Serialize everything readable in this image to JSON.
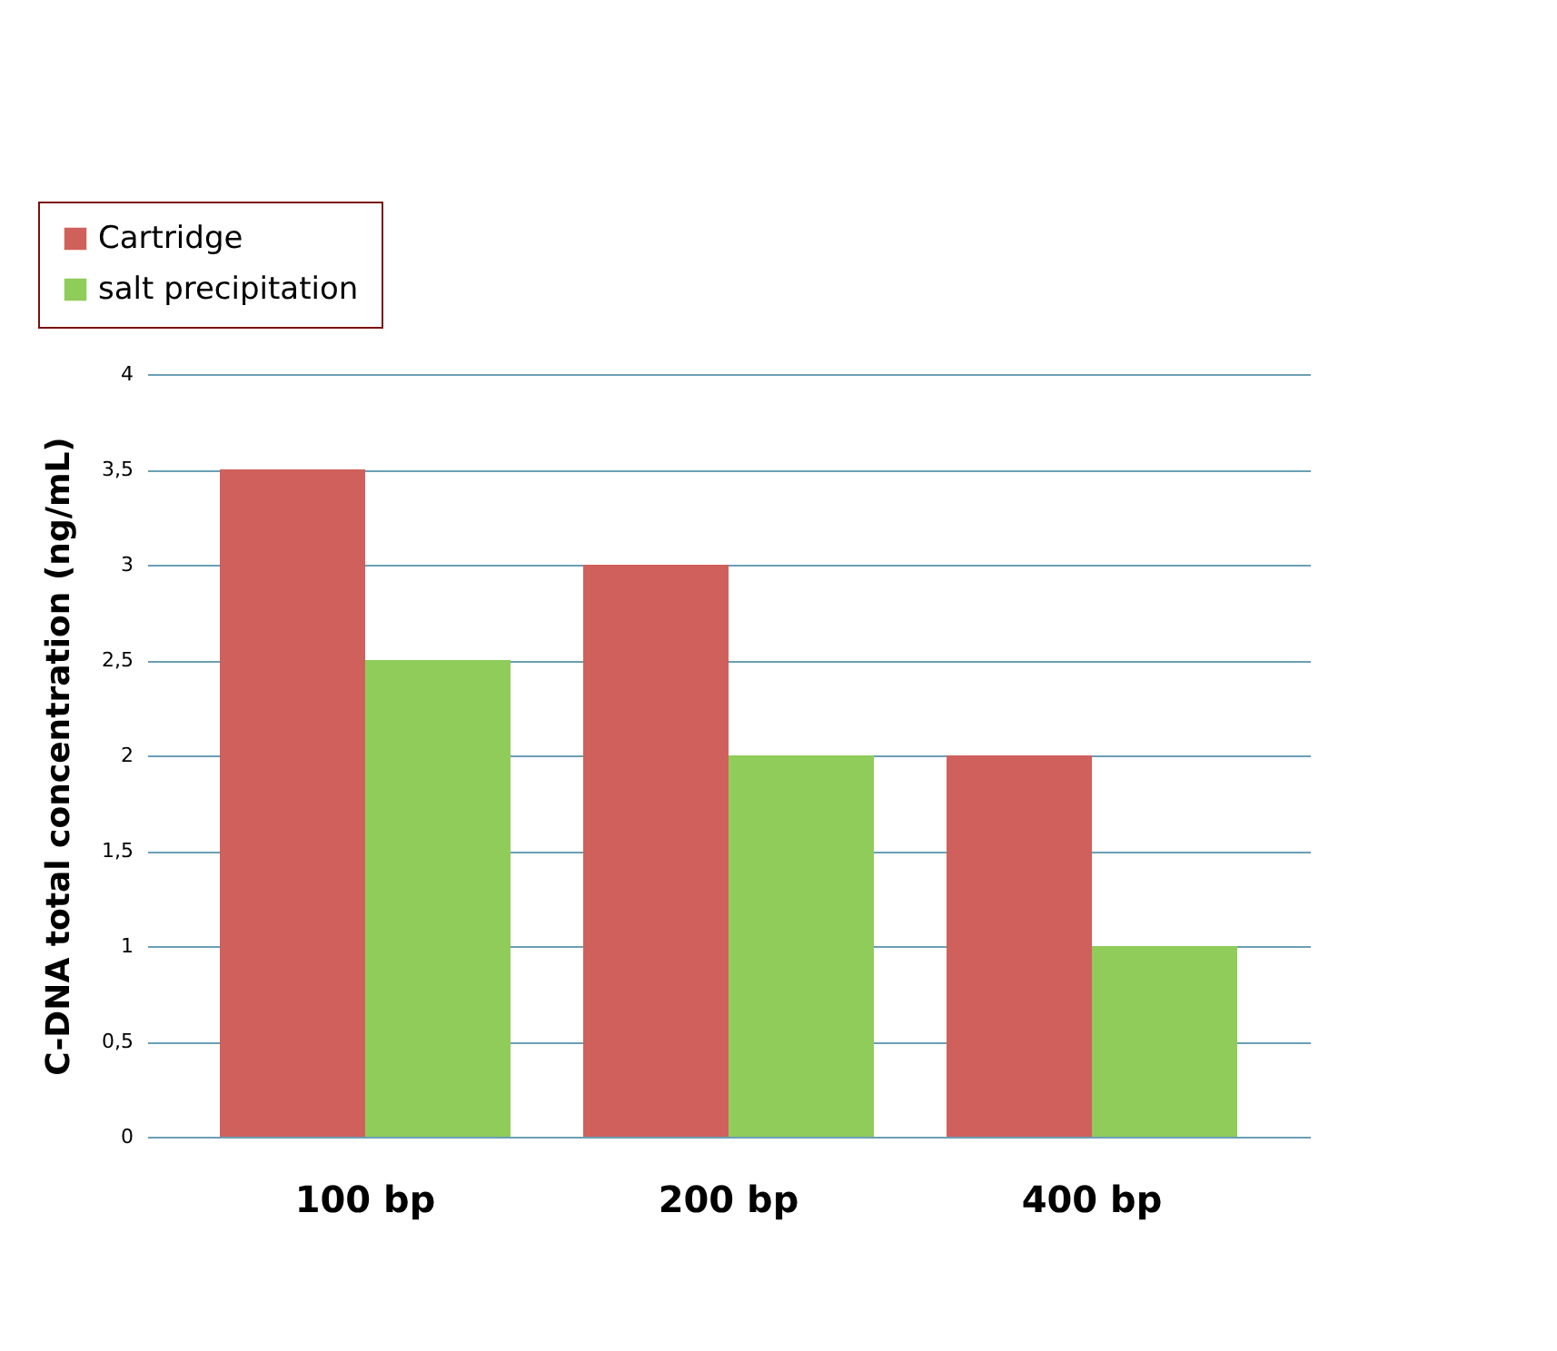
{
  "chart_data": {
    "type": "bar",
    "ylabel": "C-DNA total concentration  (ng/mL)",
    "categories": [
      "100 bp",
      "200 bp",
      "400 bp"
    ],
    "series": [
      {
        "name": "Cartridge",
        "color": "#d0605c",
        "values": [
          3.5,
          3,
          2
        ]
      },
      {
        "name": "salt precipitation",
        "color": "#8fcc5a",
        "values": [
          2.5,
          2,
          1
        ]
      }
    ],
    "ylim": [
      0,
      4
    ],
    "yticks": [
      0,
      {
        "value": 0.5,
        "label": "0,5"
      },
      1,
      {
        "value": 1.5,
        "label": "1,5"
      },
      2,
      {
        "value": 2.5,
        "label": "2,5"
      },
      3,
      {
        "value": 3.5,
        "label": "3,5"
      },
      4
    ],
    "grid": "y",
    "legend": "top left"
  }
}
